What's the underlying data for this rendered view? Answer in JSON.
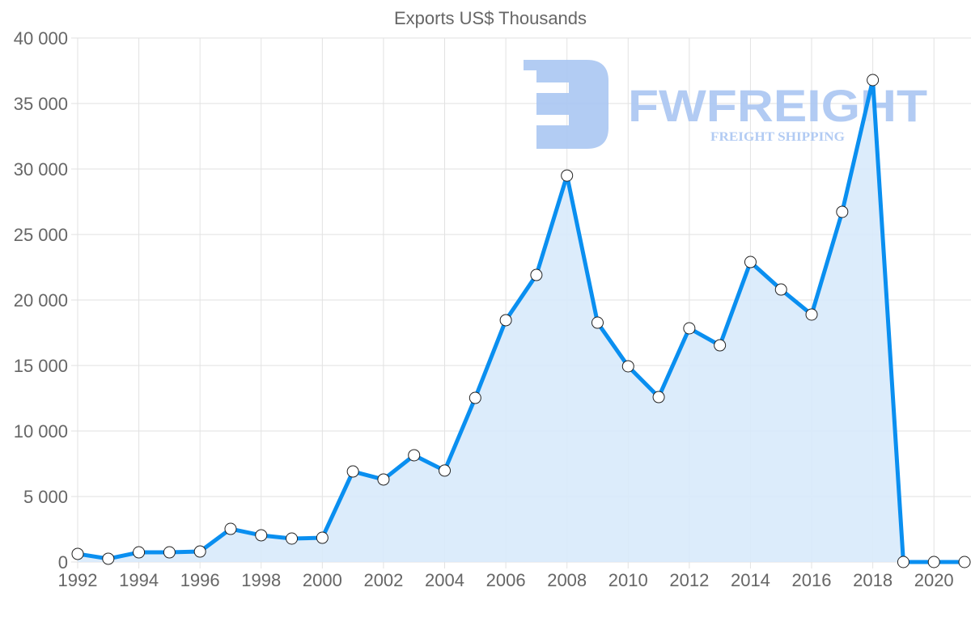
{
  "chart_data": {
    "type": "line",
    "title": "Exports US$ Thousands",
    "xlabel": "",
    "ylabel": "",
    "x": [
      1992,
      1993,
      1994,
      1995,
      1996,
      1997,
      1998,
      1999,
      2000,
      2001,
      2002,
      2003,
      2004,
      2005,
      2006,
      2007,
      2008,
      2009,
      2010,
      2011,
      2012,
      2013,
      2014,
      2015,
      2016,
      2017,
      2018,
      2019,
      2020,
      2021
    ],
    "series": [
      {
        "name": "Exports US$ Thousands",
        "values": [
          620,
          250,
          740,
          740,
          800,
          2530,
          2040,
          1790,
          1850,
          6910,
          6300,
          8150,
          6980,
          12530,
          18460,
          21910,
          29500,
          18270,
          14940,
          12590,
          17840,
          16540,
          22900,
          20800,
          18890,
          26730,
          36790,
          0,
          0,
          0
        ],
        "color": "#0a8ff0",
        "fill": "#d8eafb"
      }
    ],
    "xlim": [
      1992,
      2021
    ],
    "ylim": [
      0,
      40000
    ],
    "x_ticks": [
      "1992",
      "1994",
      "1996",
      "1998",
      "2000",
      "2002",
      "2004",
      "2006",
      "2008",
      "2010",
      "2012",
      "2014",
      "2016",
      "2018",
      "2020"
    ],
    "y_ticks": [
      "0",
      "5 000",
      "10 000",
      "15 000",
      "20 000",
      "25 000",
      "30 000",
      "35 000",
      "40 000"
    ],
    "grid": true,
    "legend": "none"
  },
  "watermark": {
    "name": "FWFREIGHT",
    "tagline": "FREIGHT SHIPPING",
    "color": "#aac6f2"
  }
}
